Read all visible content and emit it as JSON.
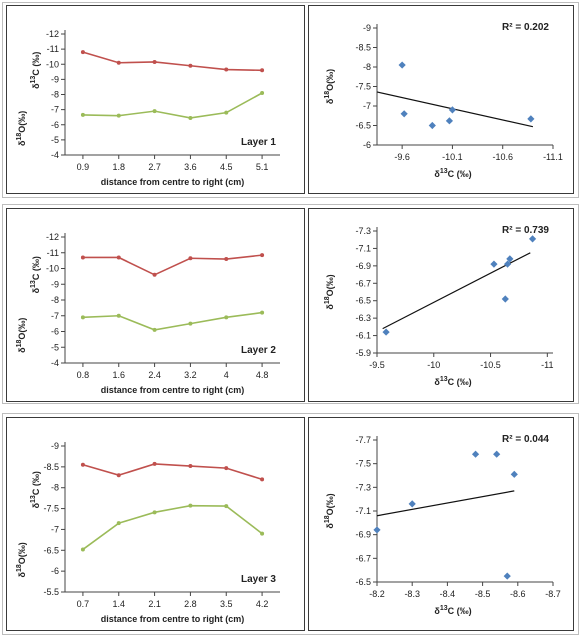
{
  "colors": {
    "d13c_line": "#c0504d",
    "d18o_line": "#9bbb59",
    "scatter_marker": "#4f81bd",
    "trend_line": "#111111"
  },
  "chart_data": [
    {
      "id": "layer1-profile",
      "type": "line",
      "x": [
        "0.9",
        "1.8",
        "2.7",
        "3.6",
        "4.5",
        "5.1"
      ],
      "xlabel": "distance from centre to right (cm)",
      "ylabel_top": "δ13C (‰)",
      "ylabel_bottom": "δ18O(‰)",
      "ylim": [
        -4,
        -12
      ],
      "yticks": [
        -4,
        -5,
        -6,
        -7,
        -8,
        -9,
        -10,
        -11,
        -12
      ],
      "annotation": "Layer 1",
      "series": [
        {
          "key": "d13c",
          "values": [
            -10.8,
            -10.1,
            -10.15,
            -9.9,
            -9.65,
            -9.6
          ]
        },
        {
          "key": "d18o",
          "values": [
            -6.65,
            -6.6,
            -6.9,
            -6.45,
            -6.8,
            -8.1
          ]
        }
      ]
    },
    {
      "id": "layer1-scatter",
      "type": "scatter",
      "xlabel": "δ13C (‰)",
      "ylabel": "δ18O(‰)",
      "xlim": [
        -9.35,
        -11.1
      ],
      "xticks": [
        -9.6,
        -10.1,
        -10.6,
        -11.1
      ],
      "ylim": [
        -6,
        -9
      ],
      "yticks": [
        -6,
        -6.5,
        -7,
        -7.5,
        -8,
        -8.5,
        -9
      ],
      "r2": "R² = 0.202",
      "points": [
        [
          -9.6,
          -8.05
        ],
        [
          -9.62,
          -6.8
        ],
        [
          -9.9,
          -6.5
        ],
        [
          -10.07,
          -6.62
        ],
        [
          -10.1,
          -6.9
        ],
        [
          -10.88,
          -6.67
        ]
      ],
      "trend": [
        [
          -9.35,
          -7.36
        ],
        [
          -10.9,
          -6.47
        ]
      ]
    },
    {
      "id": "layer2-profile",
      "type": "line",
      "x": [
        "0.8",
        "1.6",
        "2.4",
        "3.2",
        "4",
        "4.8"
      ],
      "xlabel": "distance from centre to right (cm)",
      "ylabel_top": "δ13C (‰)",
      "ylabel_bottom": "δ18O(‰)",
      "ylim": [
        -4,
        -12
      ],
      "yticks": [
        -4,
        -5,
        -6,
        -7,
        -8,
        -9,
        -10,
        -11,
        -12
      ],
      "annotation": "Layer 2",
      "series": [
        {
          "key": "d13c",
          "values": [
            -10.7,
            -10.7,
            -9.6,
            -10.65,
            -10.6,
            -10.85
          ]
        },
        {
          "key": "d18o",
          "values": [
            -6.9,
            -7.0,
            -6.1,
            -6.5,
            -6.9,
            -7.2
          ]
        }
      ]
    },
    {
      "id": "layer2-scatter",
      "type": "scatter",
      "xlabel": "δ13C (‰)",
      "ylabel": "δ18O(‰)",
      "xlim": [
        -9.5,
        -11.05
      ],
      "xticks": [
        -9.5,
        -10,
        -10.5,
        -11
      ],
      "ylim": [
        -5.9,
        -7.3
      ],
      "yticks": [
        -5.9,
        -6.1,
        -6.3,
        -6.5,
        -6.7,
        -6.9,
        -7.1,
        -7.3
      ],
      "r2": "R² = 0.739",
      "points": [
        [
          -9.58,
          -6.14
        ],
        [
          -10.53,
          -6.92
        ],
        [
          -10.63,
          -6.52
        ],
        [
          -10.65,
          -6.92
        ],
        [
          -10.67,
          -6.98
        ],
        [
          -10.87,
          -7.21
        ]
      ],
      "trend": [
        [
          -9.55,
          -6.18
        ],
        [
          -10.85,
          -7.05
        ]
      ]
    },
    {
      "id": "layer3-profile",
      "type": "line",
      "x": [
        "0.7",
        "1.4",
        "2.1",
        "2.8",
        "3.5",
        "4.2"
      ],
      "xlabel": "distance from centre to right (cm)",
      "ylabel_top": "δ13C (‰)",
      "ylabel_bottom": "δ18O(‰)",
      "ylim": [
        -5.5,
        -9
      ],
      "yticks": [
        -5.5,
        -6,
        -6.5,
        -7,
        -7.5,
        -8,
        -8.5,
        -9
      ],
      "annotation": "Layer 3",
      "series": [
        {
          "key": "d13c",
          "values": [
            -8.55,
            -8.3,
            -8.57,
            -8.52,
            -8.47,
            -8.2
          ]
        },
        {
          "key": "d18o",
          "values": [
            -6.52,
            -7.15,
            -7.41,
            -7.57,
            -7.56,
            -6.9
          ]
        }
      ]
    },
    {
      "id": "layer3-scatter",
      "type": "scatter",
      "xlabel": "δ13C (‰)",
      "ylabel": "δ18O(‰)",
      "xlim": [
        -8.2,
        -8.7
      ],
      "xticks": [
        -8.2,
        -8.3,
        -8.4,
        -8.5,
        -8.6,
        -8.7
      ],
      "ylim": [
        -6.5,
        -7.7
      ],
      "yticks": [
        -6.5,
        -6.7,
        -6.9,
        -7.1,
        -7.3,
        -7.5,
        -7.7
      ],
      "r2": "R² = 0.044",
      "points": [
        [
          -8.2,
          -6.94
        ],
        [
          -8.3,
          -7.16
        ],
        [
          -8.48,
          -7.58
        ],
        [
          -8.54,
          -7.58
        ],
        [
          -8.59,
          -7.41
        ],
        [
          -8.57,
          -6.55
        ]
      ],
      "trend": [
        [
          -8.2,
          -7.06
        ],
        [
          -8.59,
          -7.27
        ]
      ]
    }
  ]
}
